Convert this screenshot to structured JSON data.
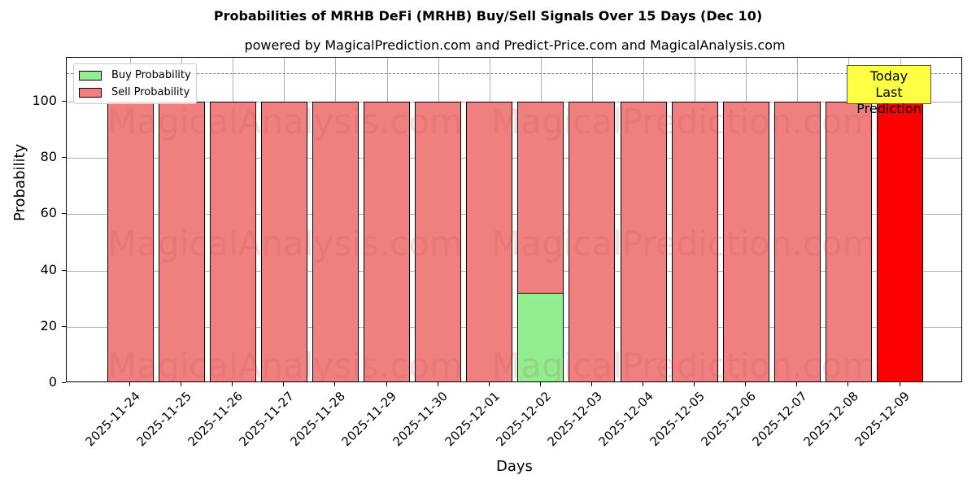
{
  "chart_data": {
    "type": "bar",
    "stacked": true,
    "title": "Probabilities of MRHB DeFi (MRHB) Buy/Sell Signals Over 15 Days (Dec 10)",
    "subtitle": "powered by MagicalPrediction.com and Predict-Price.com and MagicalAnalysis.com",
    "xlabel": "Days",
    "ylabel": "Probability",
    "ylim": [
      0,
      115
    ],
    "yticks": [
      0,
      20,
      40,
      60,
      80,
      100
    ],
    "grid": true,
    "legend_position": "upper left",
    "categories": [
      "2025-11-24",
      "2025-11-25",
      "2025-11-26",
      "2025-11-27",
      "2025-11-28",
      "2025-11-29",
      "2025-11-30",
      "2025-12-01",
      "2025-12-02",
      "2025-12-03",
      "2025-12-04",
      "2025-12-05",
      "2025-12-06",
      "2025-12-07",
      "2025-12-08",
      "2025-12-09"
    ],
    "series": [
      {
        "name": "Buy Probability",
        "color": "#90ee90",
        "values": [
          0,
          0,
          0,
          0,
          0,
          0,
          0,
          0,
          32.4,
          0,
          0,
          0,
          0,
          0,
          0,
          0
        ]
      },
      {
        "name": "Sell Probability",
        "color": "#f08080",
        "values": [
          100,
          100,
          100,
          100,
          100,
          100,
          100,
          100,
          67.6,
          100,
          100,
          100,
          100,
          100,
          100,
          100
        ]
      }
    ],
    "highlight": {
      "index": 15,
      "color": "#ff0000",
      "label": "Today\nLast Prediction"
    },
    "reference_line": {
      "y": 110,
      "style": "dashed",
      "color": "#808080"
    },
    "watermarks": [
      "MagicalAnalysis.com",
      "MagicalPrediction.com"
    ]
  },
  "labels": {
    "legend_buy": "Buy Probability",
    "legend_sell": "Sell Probability",
    "today_line1": "Today",
    "today_line2": "Last Prediction"
  }
}
